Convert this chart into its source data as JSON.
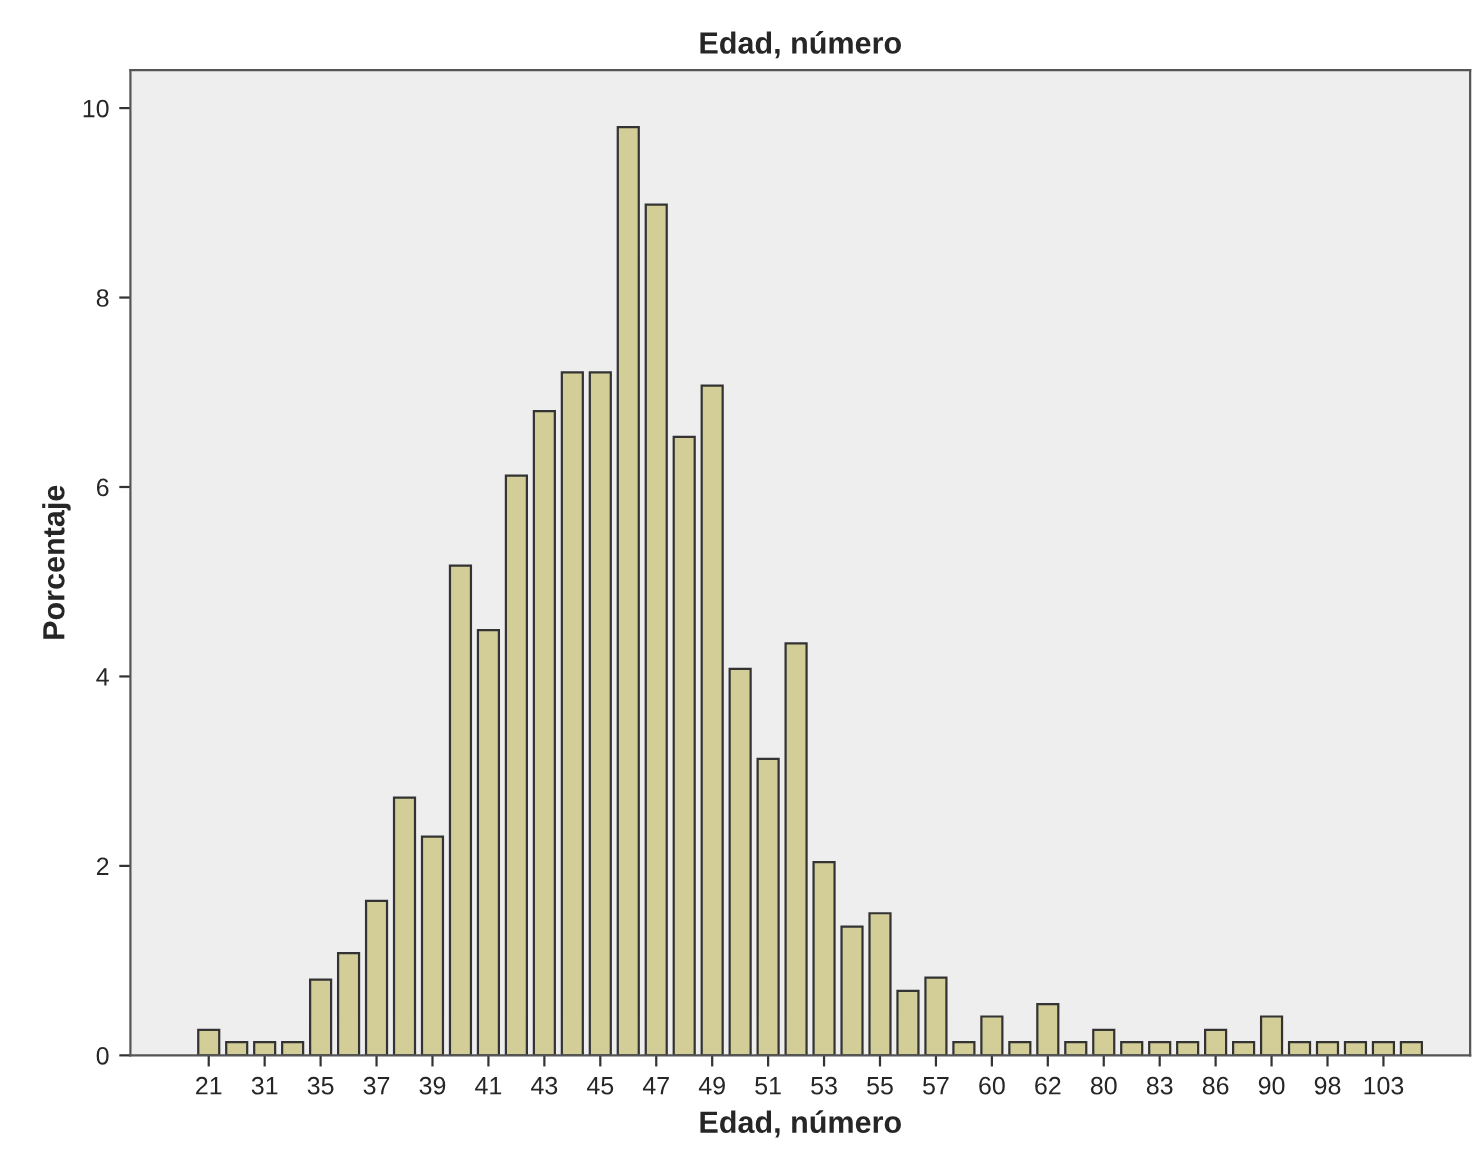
{
  "chart_data": {
    "type": "bar",
    "title": "Edad, número",
    "xlabel": "Edad, número",
    "ylabel": "Porcentaje",
    "categories": [
      "21",
      null,
      "31",
      null,
      "35",
      null,
      "37",
      null,
      "39",
      null,
      "41",
      null,
      "43",
      null,
      "45",
      null,
      "47",
      null,
      "49",
      null,
      "51",
      null,
      "53",
      null,
      "55",
      null,
      "57",
      null,
      "60",
      null,
      "62",
      null,
      "80",
      null,
      "83",
      null,
      "86",
      null,
      "90",
      null,
      "98",
      null,
      "103",
      null
    ],
    "values": [
      0.27,
      0.14,
      0.14,
      0.14,
      0.8,
      1.08,
      1.63,
      2.72,
      2.31,
      5.17,
      4.49,
      6.12,
      6.8,
      7.21,
      7.21,
      9.8,
      8.98,
      6.53,
      7.07,
      4.08,
      3.13,
      4.35,
      2.04,
      1.36,
      1.5,
      0.68,
      0.82,
      0.14,
      0.41,
      0.14,
      0.54,
      0.14,
      0.27,
      0.14,
      0.14,
      0.14,
      0.27,
      0.14,
      0.41,
      0.14,
      0.14,
      0.14,
      0.14,
      0.14
    ],
    "color": "#d3ce97",
    "ylim": [
      0,
      10.4
    ],
    "yticks": [
      0,
      2,
      4,
      6,
      8,
      10
    ],
    "grid": false,
    "legend": false
  }
}
